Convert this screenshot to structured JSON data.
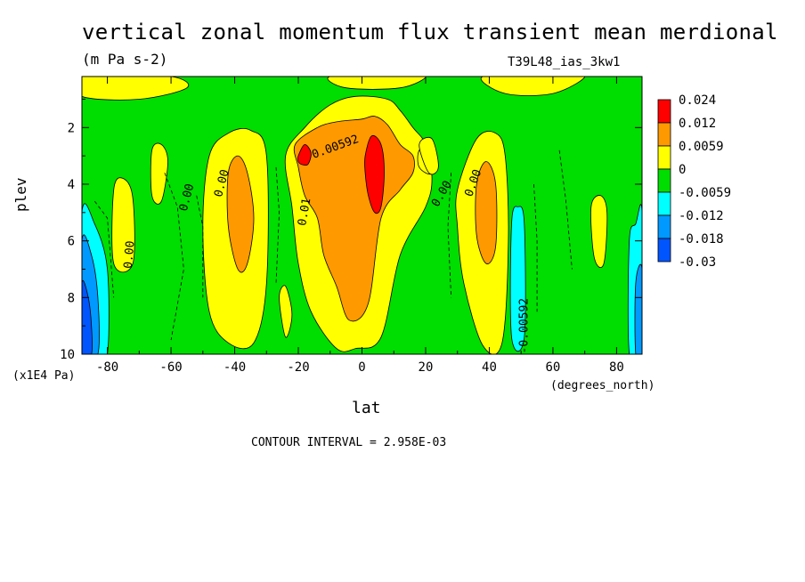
{
  "chart_data": {
    "type": "heatmap",
    "title": "vertical zonal momentum flux transient mean merdional",
    "units": "(m Pa s-2)",
    "run_label": "T39L48_ias_3kw1",
    "xlabel": "lat",
    "x_unit_label": "(degrees_north)",
    "ylabel": "plev",
    "y_unit_label": "(x1E4 Pa)",
    "xlim": [
      -88,
      88
    ],
    "ylim": [
      10,
      0.2
    ],
    "x_ticks": [
      -80,
      -60,
      -40,
      -20,
      0,
      20,
      40,
      60,
      80
    ],
    "x_tick_labels": [
      "-80",
      "-60",
      "-40",
      "-20",
      "0",
      "20",
      "40",
      "60",
      "80"
    ],
    "y_ticks": [
      2,
      4,
      6,
      8,
      10
    ],
    "y_tick_labels": [
      "2",
      "4",
      "6",
      "8",
      "10"
    ],
    "contour_interval_text": "CONTOUR INTERVAL = 2.958E-03",
    "legend": {
      "placement": "right",
      "levels": [
        "0.024",
        "0.012",
        "0.0059",
        "0",
        "-0.0059",
        "-0.012",
        "-0.018",
        "-0.03"
      ],
      "colors": [
        "#ff0000",
        "#ff9900",
        "#ffff00",
        "#00dd00",
        "#00ffff",
        "#0099ff",
        "#0055ff"
      ]
    },
    "background_color": "#00dd00",
    "regions": [
      {
        "name": "south-polar-neg",
        "color": "#00ffff",
        "lat": [
          -88,
          -84,
          -80,
          -80,
          -84,
          -88
        ],
        "p": [
          5,
          5.4,
          7,
          10,
          10,
          10
        ]
      },
      {
        "name": "south-polar-neg2",
        "color": "#0099ff",
        "lat": [
          -88,
          -85,
          -83,
          -83,
          -88
        ],
        "p": [
          6,
          6.5,
          8,
          10,
          10
        ]
      },
      {
        "name": "south-polar-neg3",
        "color": "#0055ff",
        "lat": [
          -88,
          -86,
          -85,
          -85,
          -88
        ],
        "p": [
          7.5,
          8,
          9,
          10,
          10
        ]
      },
      {
        "name": "top-pos-left",
        "color": "#ffff00",
        "lat": [
          -88,
          -80,
          -60,
          -55,
          -70,
          -88
        ],
        "p": [
          0.2,
          0.2,
          0.2,
          0.6,
          1.0,
          0.9
        ]
      },
      {
        "name": "top-pos-mid",
        "color": "#ffff00",
        "lat": [
          -10,
          10,
          20,
          12,
          -5
        ],
        "p": [
          0.2,
          0.2,
          0.2,
          0.6,
          0.6
        ]
      },
      {
        "name": "top-pos-right",
        "color": "#ffff00",
        "lat": [
          38,
          60,
          70,
          60,
          45
        ],
        "p": [
          0.2,
          0.2,
          0.2,
          0.8,
          0.8
        ]
      },
      {
        "name": "lat-75-pos",
        "color": "#ffff00",
        "lat": [
          -78,
          -75,
          -72,
          -72,
          -78
        ],
        "p": [
          4.2,
          3.8,
          4.5,
          6.8,
          6.8
        ]
      },
      {
        "name": "lat-60-pos",
        "color": "#ffff00",
        "lat": [
          -66,
          -63,
          -61,
          -63,
          -66
        ],
        "p": [
          2.8,
          2.6,
          3.2,
          4.6,
          4.4
        ]
      },
      {
        "name": "lat-40-pos",
        "color": "#ffff00",
        "lat": [
          -48,
          -42,
          -35,
          -30,
          -30,
          -34,
          -42,
          -48,
          -50
        ],
        "p": [
          3.0,
          2.2,
          2.1,
          3.0,
          7.5,
          9.6,
          9.6,
          8.5,
          5.5
        ]
      },
      {
        "name": "lat-40-orange",
        "color": "#ff9900",
        "lat": [
          -42,
          -39,
          -36,
          -34,
          -36,
          -39,
          -42
        ],
        "p": [
          3.6,
          3.0,
          3.6,
          5.2,
          6.8,
          7.0,
          5.5
        ]
      },
      {
        "name": "center-yellow",
        "color": "#ffff00",
        "lat": [
          -24,
          -18,
          -10,
          -2,
          8,
          12,
          16,
          20,
          22,
          20,
          12,
          6,
          -2,
          -8,
          -16,
          -20,
          -22
        ],
        "p": [
          3.0,
          2.0,
          1.2,
          0.9,
          1.0,
          1.4,
          2.0,
          2.6,
          3.8,
          4.8,
          6.5,
          9.4,
          9.8,
          9.8,
          8.5,
          6.8,
          4.8
        ]
      },
      {
        "name": "center-orange",
        "color": "#ff9900",
        "lat": [
          -21,
          -14,
          -8,
          0,
          4,
          8,
          12,
          16,
          16,
          12,
          6,
          2,
          -4,
          -8,
          -12,
          -14,
          -18,
          -20
        ],
        "p": [
          2.6,
          2.0,
          1.8,
          1.7,
          1.6,
          1.9,
          2.6,
          3.0,
          3.6,
          4.2,
          5.2,
          8.2,
          8.8,
          7.6,
          6.5,
          5.2,
          4.4,
          3.4
        ]
      },
      {
        "name": "center-red-left",
        "color": "#ff0000",
        "lat": [
          -20,
          -18,
          -16,
          -17,
          -19,
          -20
        ],
        "p": [
          3.0,
          2.6,
          2.9,
          3.3,
          3.3,
          3.2
        ]
      },
      {
        "name": "center-red-right",
        "color": "#ff0000",
        "lat": [
          1,
          3,
          6,
          7,
          6,
          4,
          2,
          1
        ],
        "p": [
          3.0,
          2.3,
          2.6,
          3.6,
          4.8,
          5.0,
          4.4,
          3.6
        ]
      },
      {
        "name": "lat-40n-pos",
        "color": "#ffff00",
        "lat": [
          30,
          36,
          42,
          45,
          46,
          44,
          38,
          32,
          30
        ],
        "p": [
          4.2,
          2.4,
          2.2,
          3.0,
          6.0,
          9.6,
          9.7,
          7.5,
          5.5
        ]
      },
      {
        "name": "lat-40n-orange",
        "color": "#ff9900",
        "lat": [
          36,
          39,
          42,
          42,
          39,
          36
        ],
        "p": [
          4.0,
          3.2,
          4.0,
          6.2,
          6.8,
          5.8
        ]
      },
      {
        "name": "lat-50n-neg",
        "color": "#00ffff",
        "lat": [
          47,
          49,
          51,
          51,
          47
        ],
        "p": [
          5.4,
          4.8,
          5.4,
          9.4,
          9.4
        ]
      },
      {
        "name": "lat-80n-pos",
        "color": "#ffff00",
        "lat": [
          72,
          75,
          77,
          76,
          73
        ],
        "p": [
          4.8,
          4.4,
          5.0,
          6.8,
          6.6
        ]
      },
      {
        "name": "north-polar-neg",
        "color": "#00ffff",
        "lat": [
          84,
          86,
          88,
          88,
          84
        ],
        "p": [
          6.0,
          5.4,
          5.0,
          10,
          10
        ]
      },
      {
        "name": "north-polar-neg2",
        "color": "#0099ff",
        "lat": [
          86,
          88,
          88,
          86
        ],
        "p": [
          7.5,
          7.0,
          10,
          10
        ]
      },
      {
        "name": "lat-8n-pos",
        "color": "#ffff00",
        "lat": [
          18,
          22,
          22,
          18
        ],
        "p": [
          2.8,
          2.6,
          3.6,
          3.4
        ]
      },
      {
        "name": "lat-20s-yellow",
        "color": "#ffff00",
        "lat": [
          -26,
          -24,
          -22,
          -24
        ],
        "p": [
          8.0,
          7.6,
          8.6,
          9.4
        ]
      },
      {
        "name": "lat-10n-pos",
        "color": "#ffff00",
        "lat": [
          18,
          22,
          24,
          21
        ],
        "p": [
          2.6,
          2.4,
          3.4,
          3.6
        ]
      }
    ],
    "contour_labels": [
      {
        "text": "0.00592",
        "lat": -8,
        "p": 2.8,
        "angle": -20
      },
      {
        "text": "0.00",
        "lat": -43,
        "p": 4.0,
        "angle": -75
      },
      {
        "text": "0.00",
        "lat": -54,
        "p": 4.5,
        "angle": -75
      },
      {
        "text": "0.00",
        "lat": -72,
        "p": 6.5,
        "angle": -85
      },
      {
        "text": "0.00",
        "lat": 26,
        "p": 4.4,
        "angle": -60
      },
      {
        "text": "0.00",
        "lat": 36,
        "p": 4.0,
        "angle": -70
      },
      {
        "text": "-0.00592",
        "lat": 52,
        "p": 9.0,
        "angle": -90
      },
      {
        "text": "0.01",
        "lat": -17,
        "p": 5.0,
        "angle": -80
      }
    ]
  }
}
